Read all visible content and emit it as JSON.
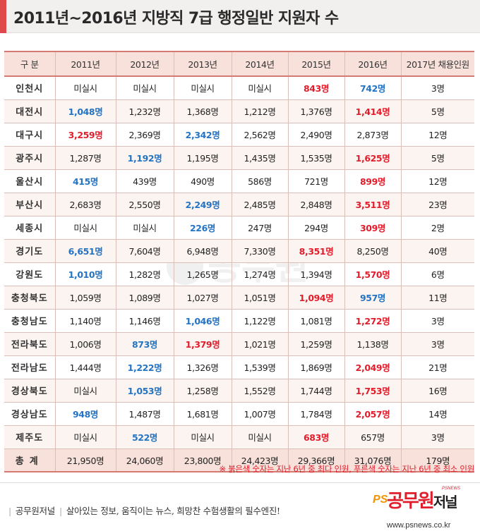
{
  "title": "2011년~2016년 지방직 7급 행정일반 지원자 수",
  "table": {
    "headers": [
      "구 분",
      "2011년",
      "2012년",
      "2013년",
      "2014년",
      "2015년",
      "2016년",
      "2017년 채용인원"
    ],
    "rows": [
      {
        "region": "인천시",
        "cells": [
          {
            "v": "미실시"
          },
          {
            "v": "미실시"
          },
          {
            "v": "미실시"
          },
          {
            "v": "미실시"
          },
          {
            "v": "843명",
            "c": "hi"
          },
          {
            "v": "742명",
            "c": "lo"
          },
          {
            "v": "3명"
          }
        ]
      },
      {
        "region": "대전시",
        "cells": [
          {
            "v": "1,048명",
            "c": "lo"
          },
          {
            "v": "1,232명"
          },
          {
            "v": "1,368명"
          },
          {
            "v": "1,212명"
          },
          {
            "v": "1,376명"
          },
          {
            "v": "1,414명",
            "c": "hi"
          },
          {
            "v": "5명"
          }
        ]
      },
      {
        "region": "대구시",
        "cells": [
          {
            "v": "3,259명",
            "c": "hi"
          },
          {
            "v": "2,369명"
          },
          {
            "v": "2,342명",
            "c": "lo"
          },
          {
            "v": "2,562명"
          },
          {
            "v": "2,490명"
          },
          {
            "v": "2,873명"
          },
          {
            "v": "12명"
          }
        ]
      },
      {
        "region": "광주시",
        "cells": [
          {
            "v": "1,287명"
          },
          {
            "v": "1,192명",
            "c": "lo"
          },
          {
            "v": "1,195명"
          },
          {
            "v": "1,435명"
          },
          {
            "v": "1,535명"
          },
          {
            "v": "1,625명",
            "c": "hi"
          },
          {
            "v": "5명"
          }
        ]
      },
      {
        "region": "울산시",
        "cells": [
          {
            "v": "415명",
            "c": "lo"
          },
          {
            "v": "439명"
          },
          {
            "v": "490명"
          },
          {
            "v": "586명"
          },
          {
            "v": "721명"
          },
          {
            "v": "899명",
            "c": "hi"
          },
          {
            "v": "12명"
          }
        ]
      },
      {
        "region": "부산시",
        "cells": [
          {
            "v": "2,683명"
          },
          {
            "v": "2,550명"
          },
          {
            "v": "2,249명",
            "c": "lo"
          },
          {
            "v": "2,485명"
          },
          {
            "v": "2,848명"
          },
          {
            "v": "3,511명",
            "c": "hi"
          },
          {
            "v": "23명"
          }
        ]
      },
      {
        "region": "세종시",
        "cells": [
          {
            "v": "미실시"
          },
          {
            "v": "미실시"
          },
          {
            "v": "226명",
            "c": "lo"
          },
          {
            "v": "247명"
          },
          {
            "v": "294명"
          },
          {
            "v": "309명",
            "c": "hi"
          },
          {
            "v": "2명"
          }
        ]
      },
      {
        "region": "경기도",
        "cells": [
          {
            "v": "6,651명",
            "c": "lo"
          },
          {
            "v": "7,604명"
          },
          {
            "v": "6,948명"
          },
          {
            "v": "7,330명"
          },
          {
            "v": "8,351명",
            "c": "hi"
          },
          {
            "v": "8,250명"
          },
          {
            "v": "40명"
          }
        ]
      },
      {
        "region": "강원도",
        "cells": [
          {
            "v": "1,010명",
            "c": "lo"
          },
          {
            "v": "1,282명"
          },
          {
            "v": "1,265명"
          },
          {
            "v": "1,274명"
          },
          {
            "v": "1,394명"
          },
          {
            "v": "1,570명",
            "c": "hi"
          },
          {
            "v": "6명"
          }
        ]
      },
      {
        "region": "충청북도",
        "cells": [
          {
            "v": "1,059명"
          },
          {
            "v": "1,089명"
          },
          {
            "v": "1,027명"
          },
          {
            "v": "1,051명"
          },
          {
            "v": "1,094명",
            "c": "hi"
          },
          {
            "v": "957명",
            "c": "lo"
          },
          {
            "v": "11명"
          }
        ]
      },
      {
        "region": "충청남도",
        "cells": [
          {
            "v": "1,140명"
          },
          {
            "v": "1,146명"
          },
          {
            "v": "1,046명",
            "c": "lo"
          },
          {
            "v": "1,122명"
          },
          {
            "v": "1,081명"
          },
          {
            "v": "1,272명",
            "c": "hi"
          },
          {
            "v": "3명"
          }
        ]
      },
      {
        "region": "전라북도",
        "cells": [
          {
            "v": "1,006명"
          },
          {
            "v": "873명",
            "c": "lo"
          },
          {
            "v": "1,379명",
            "c": "hi"
          },
          {
            "v": "1,021명"
          },
          {
            "v": "1,259명"
          },
          {
            "v": "1,138명"
          },
          {
            "v": "3명"
          }
        ]
      },
      {
        "region": "전라남도",
        "cells": [
          {
            "v": "1,444명"
          },
          {
            "v": "1,222명",
            "c": "lo"
          },
          {
            "v": "1,326명"
          },
          {
            "v": "1,539명"
          },
          {
            "v": "1,869명"
          },
          {
            "v": "2,049명",
            "c": "hi"
          },
          {
            "v": "21명"
          }
        ]
      },
      {
        "region": "경상북도",
        "cells": [
          {
            "v": "미실시"
          },
          {
            "v": "1,053명",
            "c": "lo"
          },
          {
            "v": "1,258명"
          },
          {
            "v": "1,552명"
          },
          {
            "v": "1,744명"
          },
          {
            "v": "1,753명",
            "c": "hi"
          },
          {
            "v": "16명"
          }
        ]
      },
      {
        "region": "경상남도",
        "cells": [
          {
            "v": "948명",
            "c": "lo"
          },
          {
            "v": "1,487명"
          },
          {
            "v": "1,681명"
          },
          {
            "v": "1,007명"
          },
          {
            "v": "1,784명"
          },
          {
            "v": "2,057명",
            "c": "hi"
          },
          {
            "v": "14명"
          }
        ]
      },
      {
        "region": "제주도",
        "cells": [
          {
            "v": "미실시"
          },
          {
            "v": "522명",
            "c": "lo"
          },
          {
            "v": "미실시"
          },
          {
            "v": "미실시"
          },
          {
            "v": "683명",
            "c": "hi"
          },
          {
            "v": "657명"
          },
          {
            "v": "3명"
          }
        ]
      }
    ],
    "total": {
      "region": "총계",
      "cells": [
        {
          "v": "21,950명"
        },
        {
          "v": "24,060명"
        },
        {
          "v": "23,800명"
        },
        {
          "v": "24,423명"
        },
        {
          "v": "29,366명"
        },
        {
          "v": "31,076명"
        },
        {
          "v": "179명"
        }
      ]
    }
  },
  "note": "※ 붉은색 숫자는 지난 6년 중 최다 인원, 푸른색 숫자는 지난 6년 중 최소 인원",
  "footer": {
    "brand": "공무원저널",
    "slogan": "살아있는 정보, 움직이는 뉴스, 희망찬 수험생활의 필수엔진!",
    "logo_mark": "PS",
    "logo_name_red": "공무원",
    "logo_name_dark": "저널",
    "logo_tag": "PSNEWS",
    "url": "www.psnews.co.kr"
  },
  "colors": {
    "accent": "#e0494c",
    "max": "#e11d2c",
    "min": "#2474c3",
    "header_bg": "#f7e1da"
  }
}
